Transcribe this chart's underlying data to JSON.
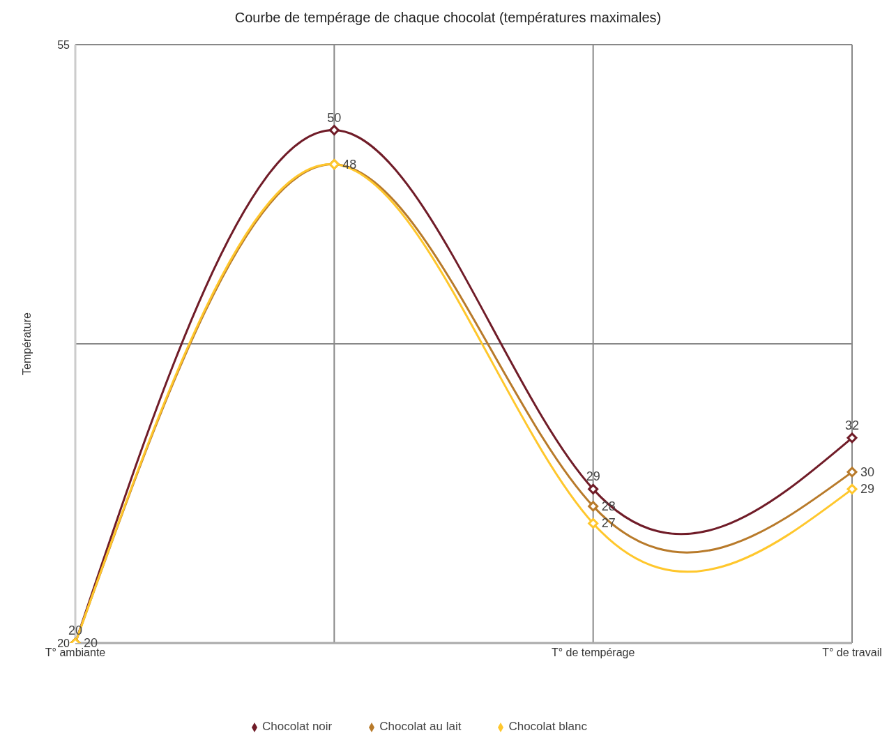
{
  "chart_data": {
    "type": "line",
    "title": "Courbe de tempérage de chaque chocolat (températures maximales)",
    "ylabel": "Température",
    "categories": [
      "T° ambiante",
      null,
      "T° de tempérage",
      "T° de travail"
    ],
    "series": [
      {
        "name": "Chocolat noir",
        "color": "#701c28",
        "values": [
          20,
          50,
          29,
          32
        ]
      },
      {
        "name": "Chocolat au lait",
        "color": "#b87a2a",
        "values": [
          20,
          48,
          28,
          30
        ]
      },
      {
        "name": "Chocolat blanc",
        "color": "#ffc72c",
        "values": [
          20,
          48,
          27,
          29
        ],
        "value_labels": [
          null,
          null,
          "27",
          "29"
        ]
      }
    ],
    "ylim": [
      20,
      55
    ],
    "yticks": [
      20,
      {
        "value": 37.5,
        "label": null
      },
      55
    ],
    "grid": true,
    "legend": "bottom",
    "marker": "diamond",
    "line_style": "solid",
    "data_labels": true
  }
}
